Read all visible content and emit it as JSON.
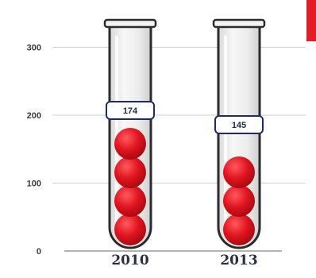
{
  "chart_data": {
    "type": "bar",
    "style": "test-tube with red balls",
    "categories": [
      "2010",
      "2013"
    ],
    "values": [
      174,
      145
    ],
    "data_labels": [
      "174",
      "145"
    ],
    "yticks": [
      0,
      100,
      200,
      300
    ],
    "ytick_labels": [
      "0",
      "100",
      "200",
      "300"
    ],
    "ylim": [
      0,
      330
    ],
    "title": "",
    "xlabel": "",
    "ylabel": "",
    "grid": true,
    "legend": "none",
    "colors": {
      "ball": "#e0141f",
      "ball_dark": "#a80a12",
      "tube_outline": "#2b2b2b",
      "tube_fill": "#eeeeee",
      "label_border": "#1f2a6b",
      "grid": "#cfcfcf",
      "corner_accent": "#e21d25"
    }
  }
}
